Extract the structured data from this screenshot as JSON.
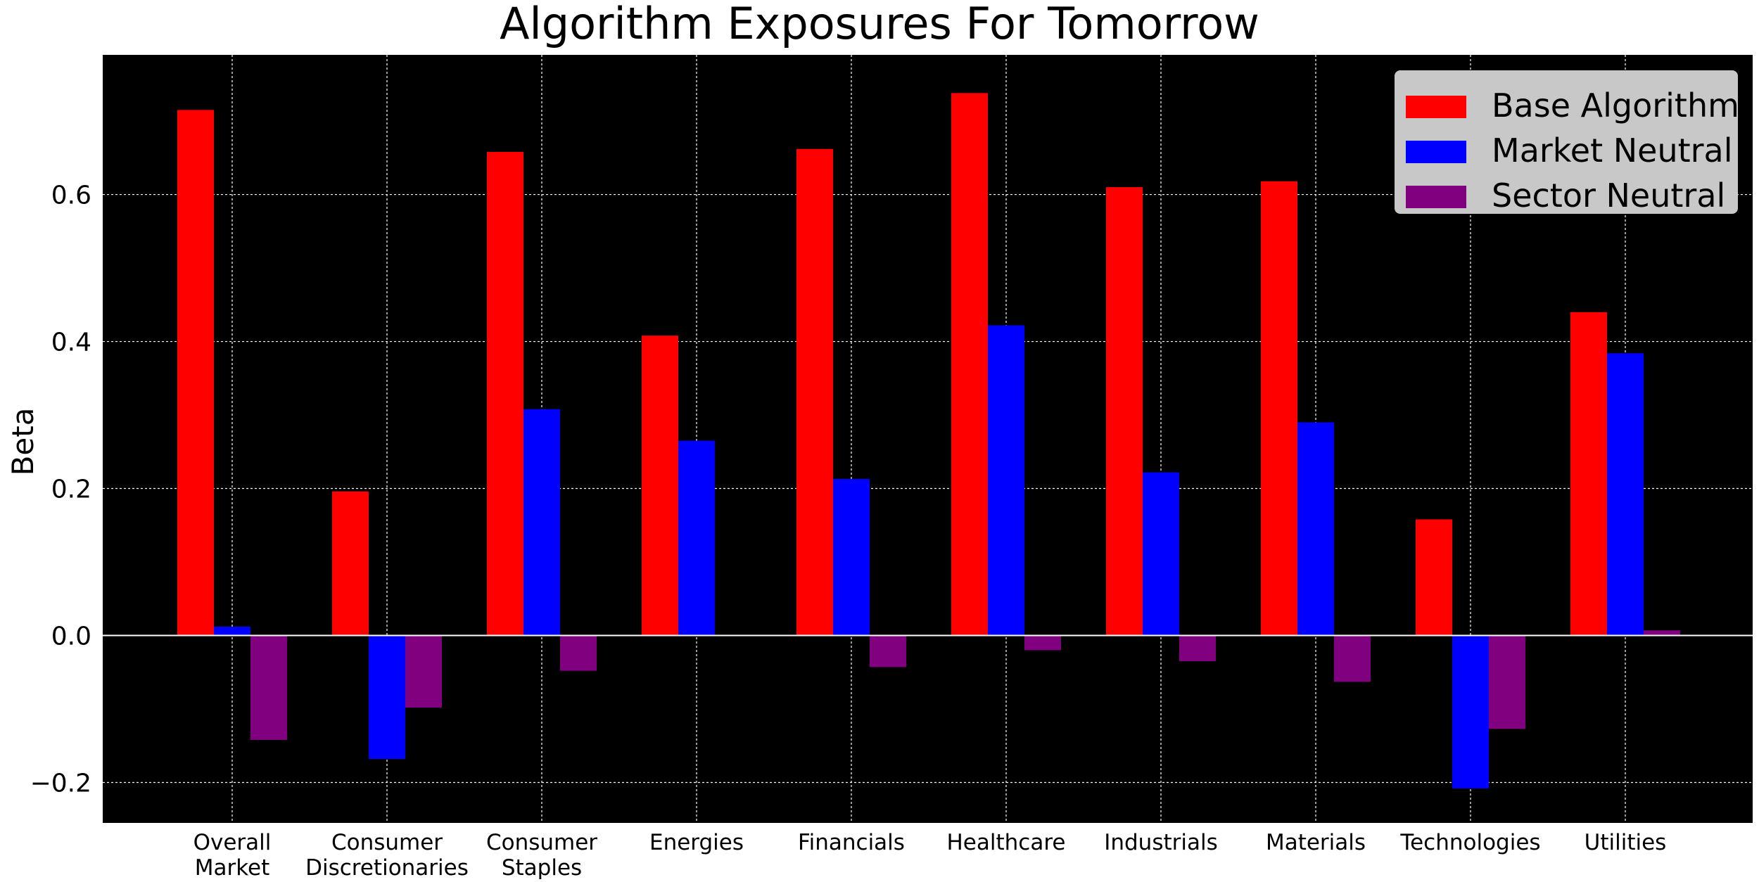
{
  "chart_data": {
    "type": "bar",
    "title": "Algorithm Exposures For Tomorrow",
    "xlabel": "",
    "ylabel": "Beta",
    "ylim": [
      -0.255,
      0.79
    ],
    "yticks": [
      -0.2,
      0.0,
      0.2,
      0.4,
      0.6
    ],
    "ytick_labels": [
      "−0.2",
      "0.0",
      "0.2",
      "0.4",
      "0.6"
    ],
    "grid": true,
    "legend_position": "top-right",
    "categories": [
      "Overall\nMarket",
      "Consumer\nDiscretionaries",
      "Consumer\nStaples",
      "Energies",
      "Financials",
      "Healthcare",
      "Industrials",
      "Materials",
      "Technologies",
      "Utilities"
    ],
    "series": [
      {
        "name": "Base Algorithm",
        "color": "#ff0000",
        "values": [
          0.715,
          0.196,
          0.658,
          0.408,
          0.662,
          0.738,
          0.61,
          0.618,
          0.158,
          0.44
        ]
      },
      {
        "name": "Market Neutral",
        "color": "#0000ff",
        "values": [
          0.012,
          -0.168,
          0.308,
          0.265,
          0.213,
          0.422,
          0.222,
          0.29,
          -0.208,
          0.384
        ]
      },
      {
        "name": "Sector Neutral",
        "color": "#800080",
        "values": [
          -0.142,
          -0.098,
          -0.048,
          0.001,
          -0.043,
          -0.02,
          -0.035,
          -0.063,
          -0.127,
          0.007
        ]
      }
    ],
    "colors": {
      "figure_background": "#ffffff",
      "plot_background": "#000000",
      "grid": "#ffffff",
      "zero_line": "#ffffff",
      "legend_background": "#c8c8c8",
      "text": "#000000"
    }
  }
}
